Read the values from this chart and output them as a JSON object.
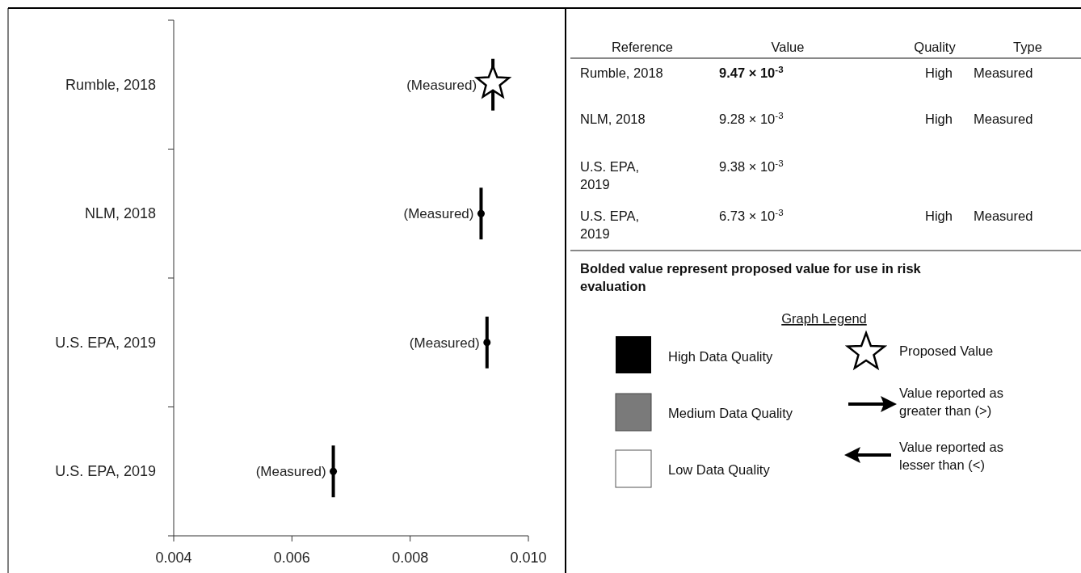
{
  "chart_data": [
    {
      "type": "scatter",
      "orientation": "horizontal",
      "categories": [
        "Rumble, 2018",
        "NLM, 2018",
        "U.S. EPA, 2019",
        "U.S. EPA, 2019"
      ],
      "series": [
        {
          "color": "#000000",
          "marker": "star",
          "values": [
            0.0094,
            null,
            null,
            null
          ],
          "value_labels": [
            "(Measured)",
            null,
            null,
            null
          ]
        },
        {
          "color": "#000000",
          "values": [
            null,
            0.0092,
            0.0093,
            0.0067
          ],
          "value_labels": [
            null,
            "(Measured)",
            "(Measured)",
            "(Measured)"
          ]
        }
      ],
      "xlim": [
        0.004,
        0.01
      ],
      "xticks": [
        {
          "value": 0.004,
          "label": "0.004"
        },
        {
          "value": 0.006,
          "label": "0.006"
        },
        {
          "value": 0.008,
          "label": "0.008"
        },
        {
          "value": 0.01,
          "label": "0.010"
        }
      ],
      "grid": false
    },
    {
      "type": "other",
      "annotations": [
        "Reference",
        "Value",
        "Quality",
        "Type",
        "Rumble, 2018",
        "9.47 × 10$^{-3}$",
        "High",
        "Measured",
        "NLM, 2018",
        "9.28 × 10$^{-3}$",
        "High",
        "Measured",
        "U.S. EPA, 2019",
        "9.38 × 10$^{-3}$",
        "U.S. EPA, 2019",
        "6.73 × 10$^{-3}$",
        "High",
        "Measured",
        "Bolded value represent proposed value for use in risk evaluation",
        "Graph Legend",
        "High Data Quality",
        "Proposed Value",
        "Medium Data Quality",
        "Value reported as greater than (>)",
        "Low Data Quality",
        "Value reported as lesser than (<)"
      ]
    }
  ]
}
